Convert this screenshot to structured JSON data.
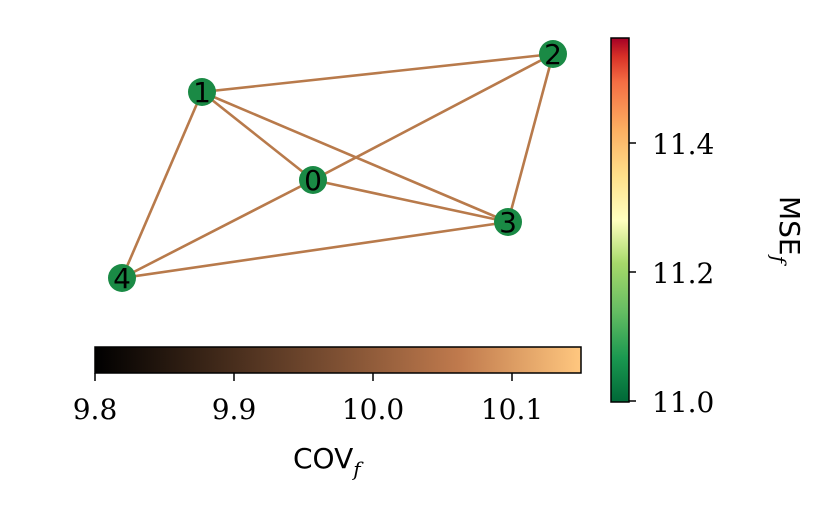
{
  "graph": {
    "nodes": [
      {
        "id": "0",
        "label": "0"
      },
      {
        "id": "1",
        "label": "1"
      },
      {
        "id": "2",
        "label": "2"
      },
      {
        "id": "3",
        "label": "3"
      },
      {
        "id": "4",
        "label": "4"
      }
    ],
    "edges": [
      [
        "1",
        "2"
      ],
      [
        "1",
        "0"
      ],
      [
        "1",
        "3"
      ],
      [
        "1",
        "4"
      ],
      [
        "2",
        "0"
      ],
      [
        "2",
        "3"
      ],
      [
        "0",
        "3"
      ],
      [
        "0",
        "4"
      ],
      [
        "3",
        "4"
      ]
    ],
    "node_color": "#1a8a45",
    "edge_color": "#b87a4b"
  },
  "colorbar_mse": {
    "label_main": "MSE",
    "label_sub": "f",
    "ticks": [
      "11.0",
      "11.2",
      "11.4"
    ],
    "colormap": "RdYlGn_r"
  },
  "colorbar_cov": {
    "label_main": "COV",
    "label_sub": "f",
    "ticks": [
      "9.8",
      "9.9",
      "10.0",
      "10.1"
    ],
    "colormap": "copper"
  }
}
